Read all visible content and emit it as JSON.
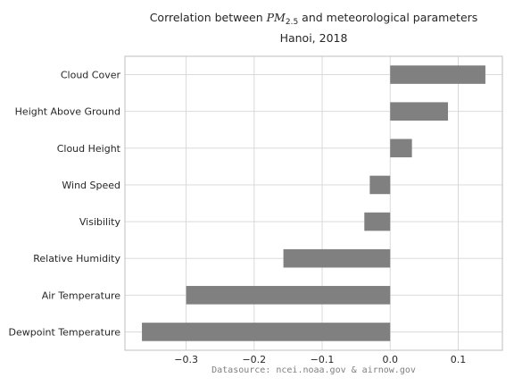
{
  "title_line1_prefix": "Correlation between ",
  "title_pm_main": "PM",
  "title_pm_sub": "2.5",
  "title_line1_suffix": " and meteorological parameters",
  "title_line2": "Hanoi, 2018",
  "source": "Datasource: ncei.noaa.gov & airnow.gov",
  "bar_color": "#808080",
  "chart_data": {
    "type": "bar",
    "orientation": "horizontal",
    "title": "Correlation between PM2.5 and meteorological parameters\nHanoi, 2018",
    "categories": [
      "Cloud Cover",
      "Height Above Ground",
      "Cloud Height",
      "Wind Speed",
      "Visibility",
      "Relative Humidity",
      "Air Temperature",
      "Dewpoint Temperature"
    ],
    "values": [
      0.14,
      0.085,
      0.032,
      -0.03,
      -0.038,
      -0.157,
      -0.3,
      -0.365
    ],
    "xlim": [
      -0.39,
      0.165
    ],
    "xticks": [
      -0.3,
      -0.2,
      -0.1,
      0.0,
      0.1
    ],
    "xtick_labels": [
      "−0.3",
      "−0.2",
      "−0.1",
      "0.0",
      "0.1"
    ],
    "grid": true
  }
}
